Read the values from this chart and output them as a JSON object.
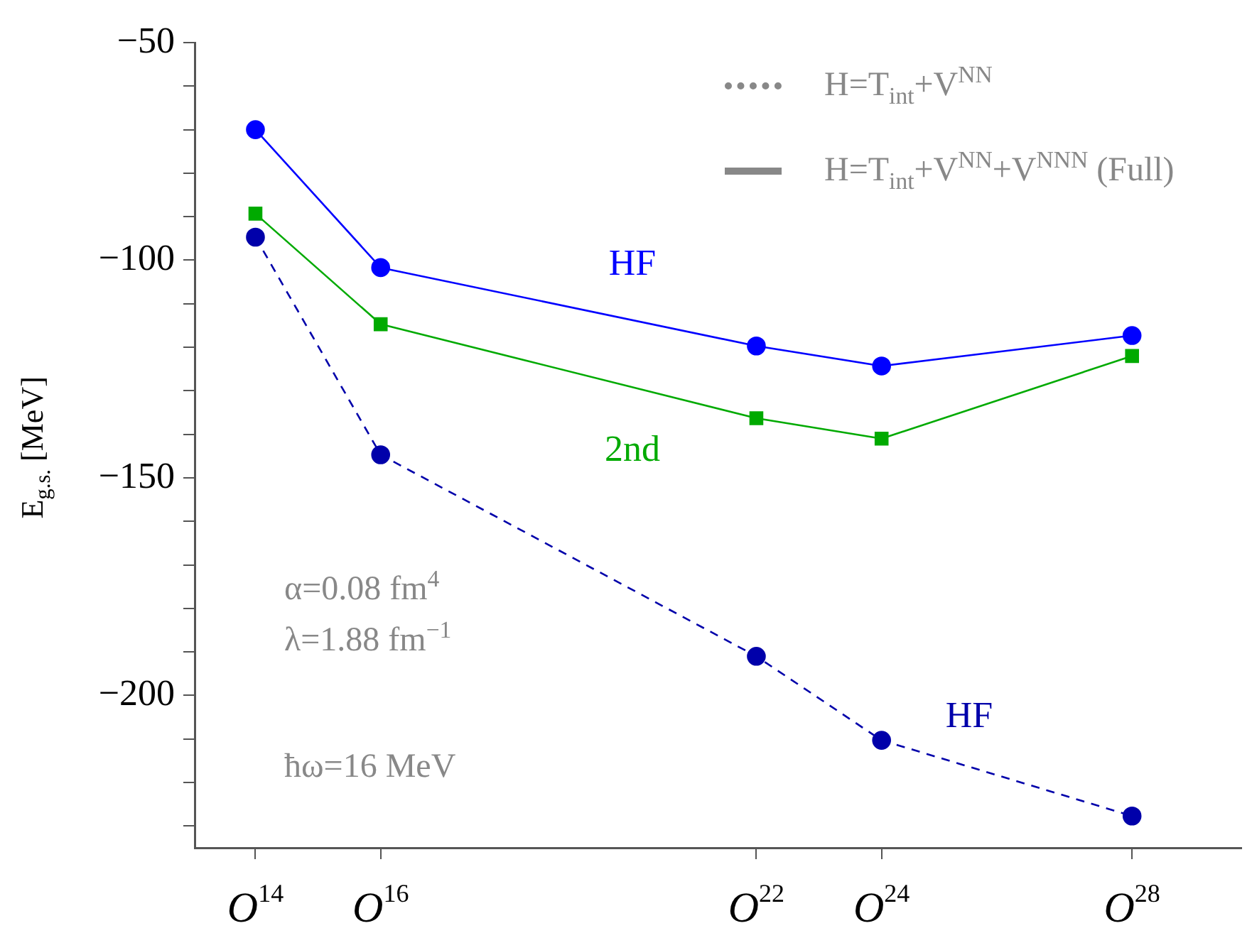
{
  "chart_data": {
    "type": "line",
    "ylabel": "E$_{g.s.}$ [MeV]",
    "x": [
      14,
      16,
      22,
      24,
      28
    ],
    "xlim": [
      13.03,
      29.75
    ],
    "xticks": [
      {
        "value": 14,
        "label": "O$^{14}$"
      },
      {
        "value": 16,
        "label": "O$^{16}$"
      },
      {
        "value": 22,
        "label": "O$^{22}$"
      },
      {
        "value": 24,
        "label": "O$^{24}$"
      },
      {
        "value": 28,
        "label": "O$^{28}$"
      }
    ],
    "ylim": [
      -235,
      -50
    ],
    "yticks": [
      -50,
      {
        "value": -60,
        "label": null
      },
      {
        "value": -70,
        "label": null
      },
      {
        "value": -80,
        "label": null
      },
      {
        "value": -90,
        "label": null
      },
      -100,
      {
        "value": -110,
        "label": null
      },
      {
        "value": -120,
        "label": null
      },
      {
        "value": -130,
        "label": null
      },
      {
        "value": -140,
        "label": null
      },
      -150,
      {
        "value": -160,
        "label": null
      },
      {
        "value": -170,
        "label": null
      },
      {
        "value": -180,
        "label": null
      },
      {
        "value": -190,
        "label": null
      },
      -200,
      {
        "value": -210,
        "label": null
      },
      {
        "value": -220,
        "label": null
      },
      {
        "value": -230,
        "label": null
      }
    ],
    "grid": false,
    "legend": false,
    "series": [
      {
        "name": "HF",
        "color": "#0000ff",
        "marker": "circle",
        "line_style": "solid",
        "values": [
          -70,
          -101.7,
          -119.7,
          -124.3,
          -117.3
        ]
      },
      {
        "name": "2nd",
        "color": "#00aa00",
        "marker": "square",
        "line_style": "solid",
        "values": [
          -89.3,
          -114.7,
          -136.3,
          -141,
          -122
        ]
      },
      {
        "name": "HF",
        "color": "#0000aa",
        "marker": "circle",
        "line_style": "dashed",
        "values": [
          -94.7,
          -144.7,
          -191,
          -210.3,
          -227.7
        ]
      }
    ],
    "annotations": [
      "H=T$_{int}$+V$^{NN}$",
      "H=T$_{int}$+V$^{NN}$+V$^{NNN}$ (Full)",
      "α=0.08 fm$^{4}$",
      "λ=1.88 fm$^{−1}$",
      "ħω=16 MeV"
    ]
  }
}
